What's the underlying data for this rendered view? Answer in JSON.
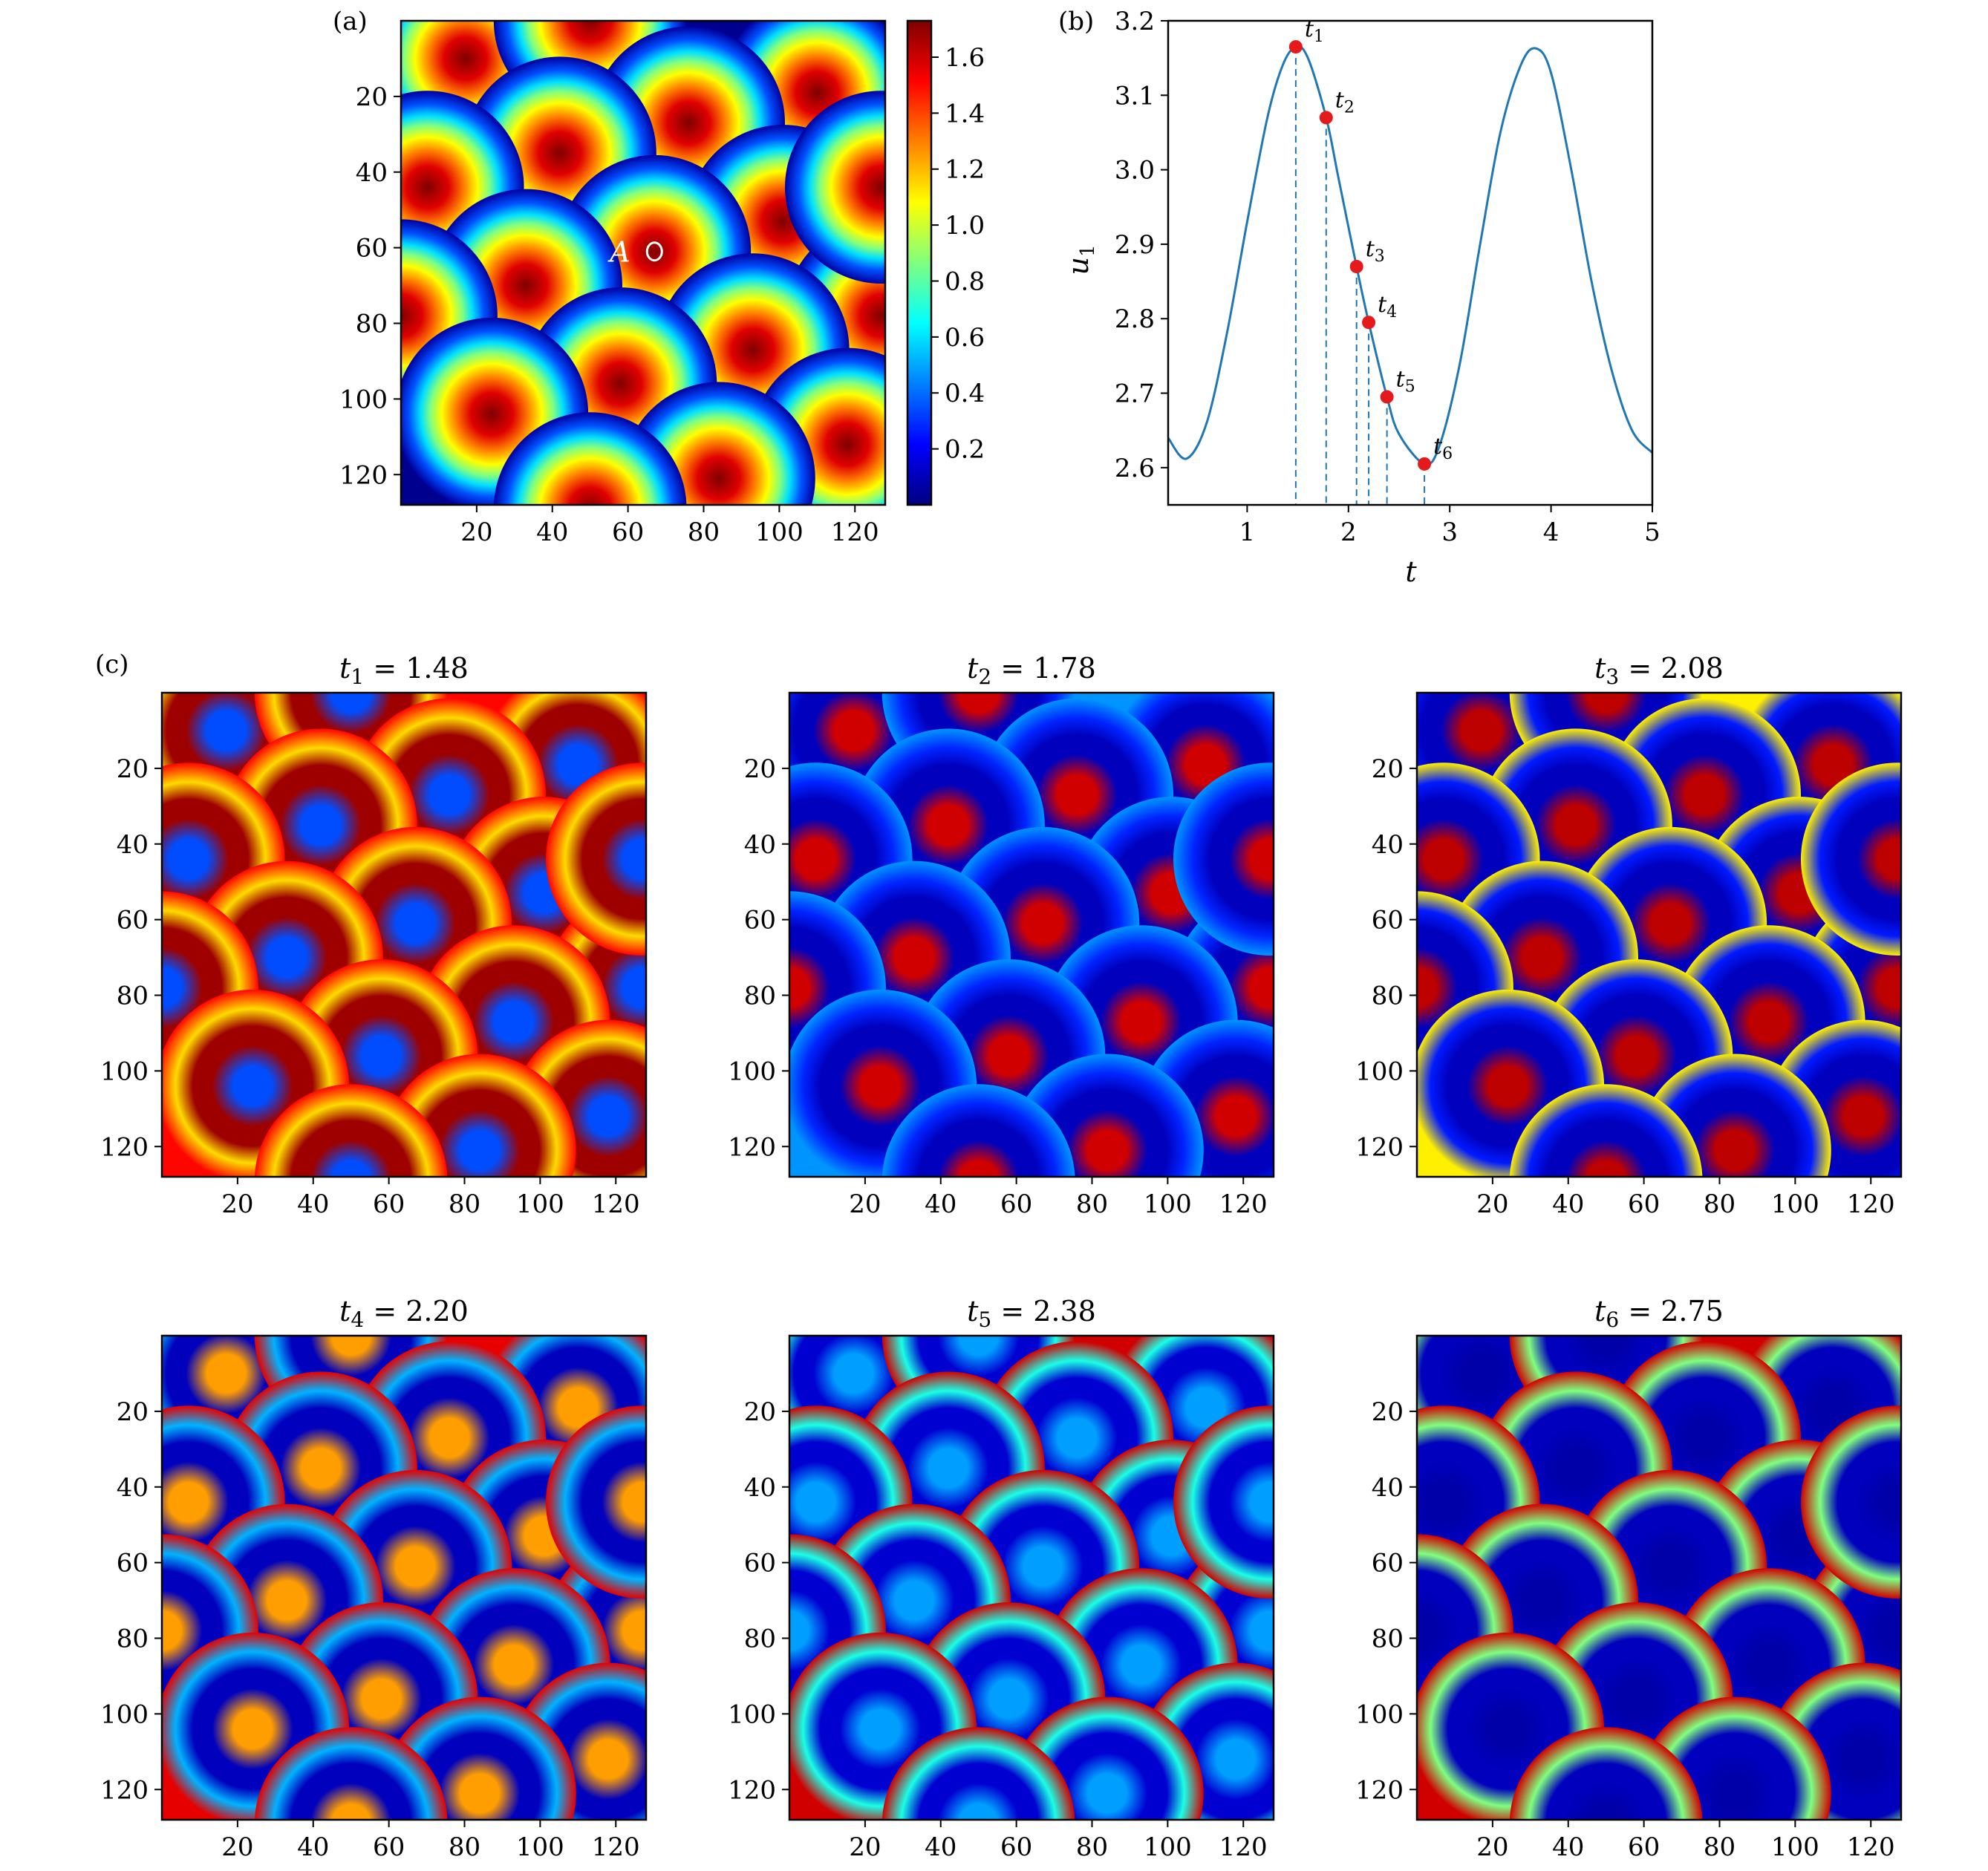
{
  "colors": {
    "jet": [
      "#000080",
      "#0000ff",
      "#0080ff",
      "#00ffff",
      "#80ff80",
      "#ffff00",
      "#ff8000",
      "#ff0000",
      "#800000"
    ],
    "line": "#1f77b4",
    "marker": "#e41a1c",
    "frame": "#000000"
  },
  "panel_a": {
    "label": "(a)",
    "point_label": "A",
    "point": [
      67,
      61
    ]
  },
  "panel_b": {
    "label": "(b)",
    "xlabel": "t",
    "ylabel_main": "u",
    "ylabel_sub": "1"
  },
  "panel_c": {
    "label": "(c)",
    "titles": [
      {
        "var": "t",
        "sub": "1",
        "rest": " = 1.48"
      },
      {
        "var": "t",
        "sub": "2",
        "rest": " = 1.78"
      },
      {
        "var": "t",
        "sub": "3",
        "rest": " = 2.08"
      },
      {
        "var": "t",
        "sub": "4",
        "rest": " = 2.20"
      },
      {
        "var": "t",
        "sub": "5",
        "rest": " = 2.38"
      },
      {
        "var": "t",
        "sub": "6",
        "rest": " = 2.75"
      }
    ]
  },
  "chart_data": [
    {
      "type": "heatmap",
      "panel": "(a)",
      "xlim": [
        0,
        128
      ],
      "ylim": [
        128,
        0
      ],
      "xticks": [
        20,
        40,
        60,
        80,
        100,
        120
      ],
      "yticks": [
        20,
        40,
        60,
        80,
        100,
        120
      ],
      "colorbar_ticks": [
        0.2,
        0.4,
        0.6,
        0.8,
        1.0,
        1.2,
        1.4,
        1.6
      ],
      "colorbar_range": [
        0.0,
        1.73
      ],
      "spot_centers": [
        [
          17,
          10
        ],
        [
          50,
          0
        ],
        [
          110,
          19
        ],
        [
          76,
          27
        ],
        [
          42,
          35
        ],
        [
          7,
          44
        ],
        [
          101,
          53
        ],
        [
          67,
          61
        ],
        [
          33,
          70
        ],
        [
          127,
          78
        ],
        [
          0,
          78
        ],
        [
          93,
          87
        ],
        [
          58,
          96
        ],
        [
          24,
          104
        ],
        [
          118,
          112
        ],
        [
          84,
          121
        ],
        [
          50,
          129
        ],
        [
          127,
          44
        ]
      ]
    },
    {
      "type": "line",
      "panel": "(b)",
      "xlabel": "t",
      "ylabel": "u1",
      "xlim": [
        0.22,
        5.0
      ],
      "ylim": [
        2.55,
        3.2
      ],
      "xticks": [
        1,
        2,
        3,
        4,
        5
      ],
      "yticks": [
        2.6,
        2.7,
        2.8,
        2.9,
        3.0,
        3.1,
        3.2
      ],
      "curve": {
        "x": [
          0.22,
          0.4,
          0.6,
          0.8,
          1.0,
          1.2,
          1.35,
          1.48,
          1.6,
          1.78,
          1.9,
          2.08,
          2.2,
          2.38,
          2.5,
          2.75,
          2.9,
          3.1,
          3.3,
          3.5,
          3.7,
          3.85,
          4.0,
          4.2,
          4.4,
          4.6,
          4.8,
          5.0
        ],
        "y": [
          2.64,
          2.612,
          2.66,
          2.78,
          2.93,
          3.07,
          3.14,
          3.165,
          3.15,
          3.07,
          2.99,
          2.87,
          2.795,
          2.695,
          2.645,
          2.605,
          2.63,
          2.74,
          2.9,
          3.05,
          3.14,
          3.163,
          3.13,
          3.0,
          2.85,
          2.73,
          2.65,
          2.62
        ]
      },
      "markers": [
        {
          "label": "t1",
          "sub": "1",
          "x": 1.48,
          "y": 3.165
        },
        {
          "label": "t2",
          "sub": "2",
          "x": 1.78,
          "y": 3.07
        },
        {
          "label": "t3",
          "sub": "3",
          "x": 2.08,
          "y": 2.87
        },
        {
          "label": "t4",
          "sub": "4",
          "x": 2.2,
          "y": 2.795
        },
        {
          "label": "t5",
          "sub": "5",
          "x": 2.38,
          "y": 2.695
        },
        {
          "label": "t6",
          "sub": "6",
          "x": 2.75,
          "y": 2.605
        }
      ]
    },
    {
      "type": "heatmap",
      "panel": "(c)",
      "xlim": [
        0,
        128
      ],
      "ylim": [
        128,
        0
      ],
      "xticks": [
        20,
        40,
        60,
        80,
        100,
        120
      ],
      "yticks": [
        20,
        40,
        60,
        80,
        100,
        120
      ],
      "snapshots": [
        {
          "t": 1.48,
          "background": 0.87,
          "spot_core": 0.2,
          "ring_inner": 0.97,
          "ring_outer": 0.66
        },
        {
          "t": 1.78,
          "background": 0.27,
          "spot_core": 0.92,
          "ring_inner": 0.06,
          "ring_outer": 0.16
        },
        {
          "t": 2.08,
          "background": 0.64,
          "spot_core": 0.94,
          "ring_inner": 0.06,
          "ring_outer": 0.15
        },
        {
          "t": 2.2,
          "background": 0.9,
          "spot_core": 0.72,
          "ring_inner": 0.06,
          "ring_outer": 0.3
        },
        {
          "t": 2.38,
          "background": 0.92,
          "spot_core": 0.28,
          "ring_inner": 0.08,
          "ring_outer": 0.4
        },
        {
          "t": 2.75,
          "background": 0.92,
          "spot_core": 0.04,
          "ring_inner": 0.06,
          "ring_outer": 0.5
        }
      ]
    }
  ]
}
